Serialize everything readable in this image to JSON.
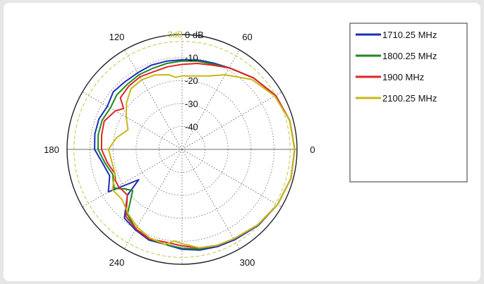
{
  "chart_data": {
    "type": "polar-line",
    "title": "",
    "angle_unit": "degrees",
    "angle_ticks": [
      0,
      60,
      120,
      180,
      240,
      300
    ],
    "angle_tick_labels": [
      "0",
      "60",
      "120",
      "180",
      "240",
      "300"
    ],
    "radial_unit": "dB",
    "radial_range": [
      -50,
      0
    ],
    "radial_rings": [
      0,
      -10,
      -20,
      -30,
      -40
    ],
    "radial_tick_labels": [
      "0 dB",
      "-10",
      "-20",
      "-30",
      "-40"
    ],
    "reference_circle": {
      "value": -3,
      "label": "-3dB",
      "color": "#c4c44a"
    },
    "grid": true,
    "legend_position": "right",
    "series": [
      {
        "name": "1710.25 MHz",
        "color": "#1c2fb5",
        "angles": [
          0,
          15,
          30,
          45,
          60,
          70,
          80,
          90,
          100,
          110,
          120,
          130,
          140,
          150,
          160,
          170,
          180,
          190,
          200,
          205,
          210,
          215,
          220,
          230,
          240,
          250,
          260,
          270,
          280,
          290,
          300,
          315,
          330,
          345
        ],
        "values": [
          -1,
          -1.5,
          -3,
          -6,
          -9,
          -10,
          -10.5,
          -11,
          -11,
          -11,
          -11.5,
          -11.5,
          -11,
          -12.5,
          -11.5,
          -11.5,
          -12,
          -15,
          -16.5,
          -15,
          -13,
          -27,
          -19,
          -11,
          -9.5,
          -8,
          -8,
          -6.5,
          -5.5,
          -5,
          -4.5,
          -3.2,
          -2,
          -1
        ]
      },
      {
        "name": "1800.25 MHz",
        "color": "#1e8a1e",
        "angles": [
          0,
          15,
          30,
          45,
          60,
          70,
          80,
          90,
          100,
          110,
          120,
          130,
          140,
          150,
          160,
          170,
          180,
          190,
          200,
          205,
          210,
          215,
          220,
          230,
          240,
          250,
          260,
          270,
          280,
          290,
          300,
          315,
          330,
          345
        ],
        "values": [
          -1,
          -1.5,
          -3,
          -6,
          -9,
          -10.5,
          -11,
          -11.5,
          -12,
          -12.5,
          -12.5,
          -13,
          -13,
          -14,
          -13,
          -13,
          -13.5,
          -16,
          -18,
          -17,
          -16,
          -20,
          -22,
          -13,
          -10,
          -8.5,
          -8,
          -7,
          -6,
          -5.5,
          -5,
          -3.5,
          -2,
          -1
        ]
      },
      {
        "name": "1900 MHz",
        "color": "#e02424",
        "angles": [
          0,
          15,
          30,
          45,
          60,
          70,
          80,
          90,
          100,
          110,
          120,
          130,
          140,
          145,
          150,
          160,
          170,
          180,
          190,
          200,
          205,
          210,
          220,
          230,
          240,
          250,
          260,
          270,
          280,
          290,
          300,
          315,
          330,
          345
        ],
        "values": [
          -1,
          -1.5,
          -3,
          -6,
          -9,
          -11,
          -12,
          -13,
          -13.5,
          -14,
          -13.5,
          -14,
          -15,
          -19,
          -16.5,
          -14,
          -14.5,
          -15,
          -17,
          -19,
          -18,
          -18,
          -19,
          -12,
          -10,
          -8.5,
          -9,
          -8,
          -6.5,
          -5.5,
          -5,
          -3.5,
          -2,
          -1
        ]
      },
      {
        "name": "2100.25 MHz",
        "color": "#c8b818",
        "angles": [
          0,
          15,
          30,
          45,
          60,
          70,
          80,
          90,
          95,
          100,
          110,
          120,
          130,
          140,
          150,
          160,
          170,
          180,
          190,
          200,
          210,
          220,
          230,
          240,
          250,
          260,
          265,
          270,
          280,
          290,
          300,
          315,
          330,
          345
        ],
        "values": [
          -1,
          -1.5,
          -3.5,
          -7,
          -12.5,
          -16,
          -17.5,
          -18,
          -18.5,
          -17,
          -15.5,
          -15,
          -15.5,
          -18.5,
          -22,
          -25,
          -21,
          -18,
          -19,
          -19,
          -15,
          -16,
          -13.5,
          -11,
          -9,
          -8,
          -10,
          -9,
          -6.5,
          -5.5,
          -5,
          -3.5,
          -2,
          -1
        ]
      }
    ]
  }
}
